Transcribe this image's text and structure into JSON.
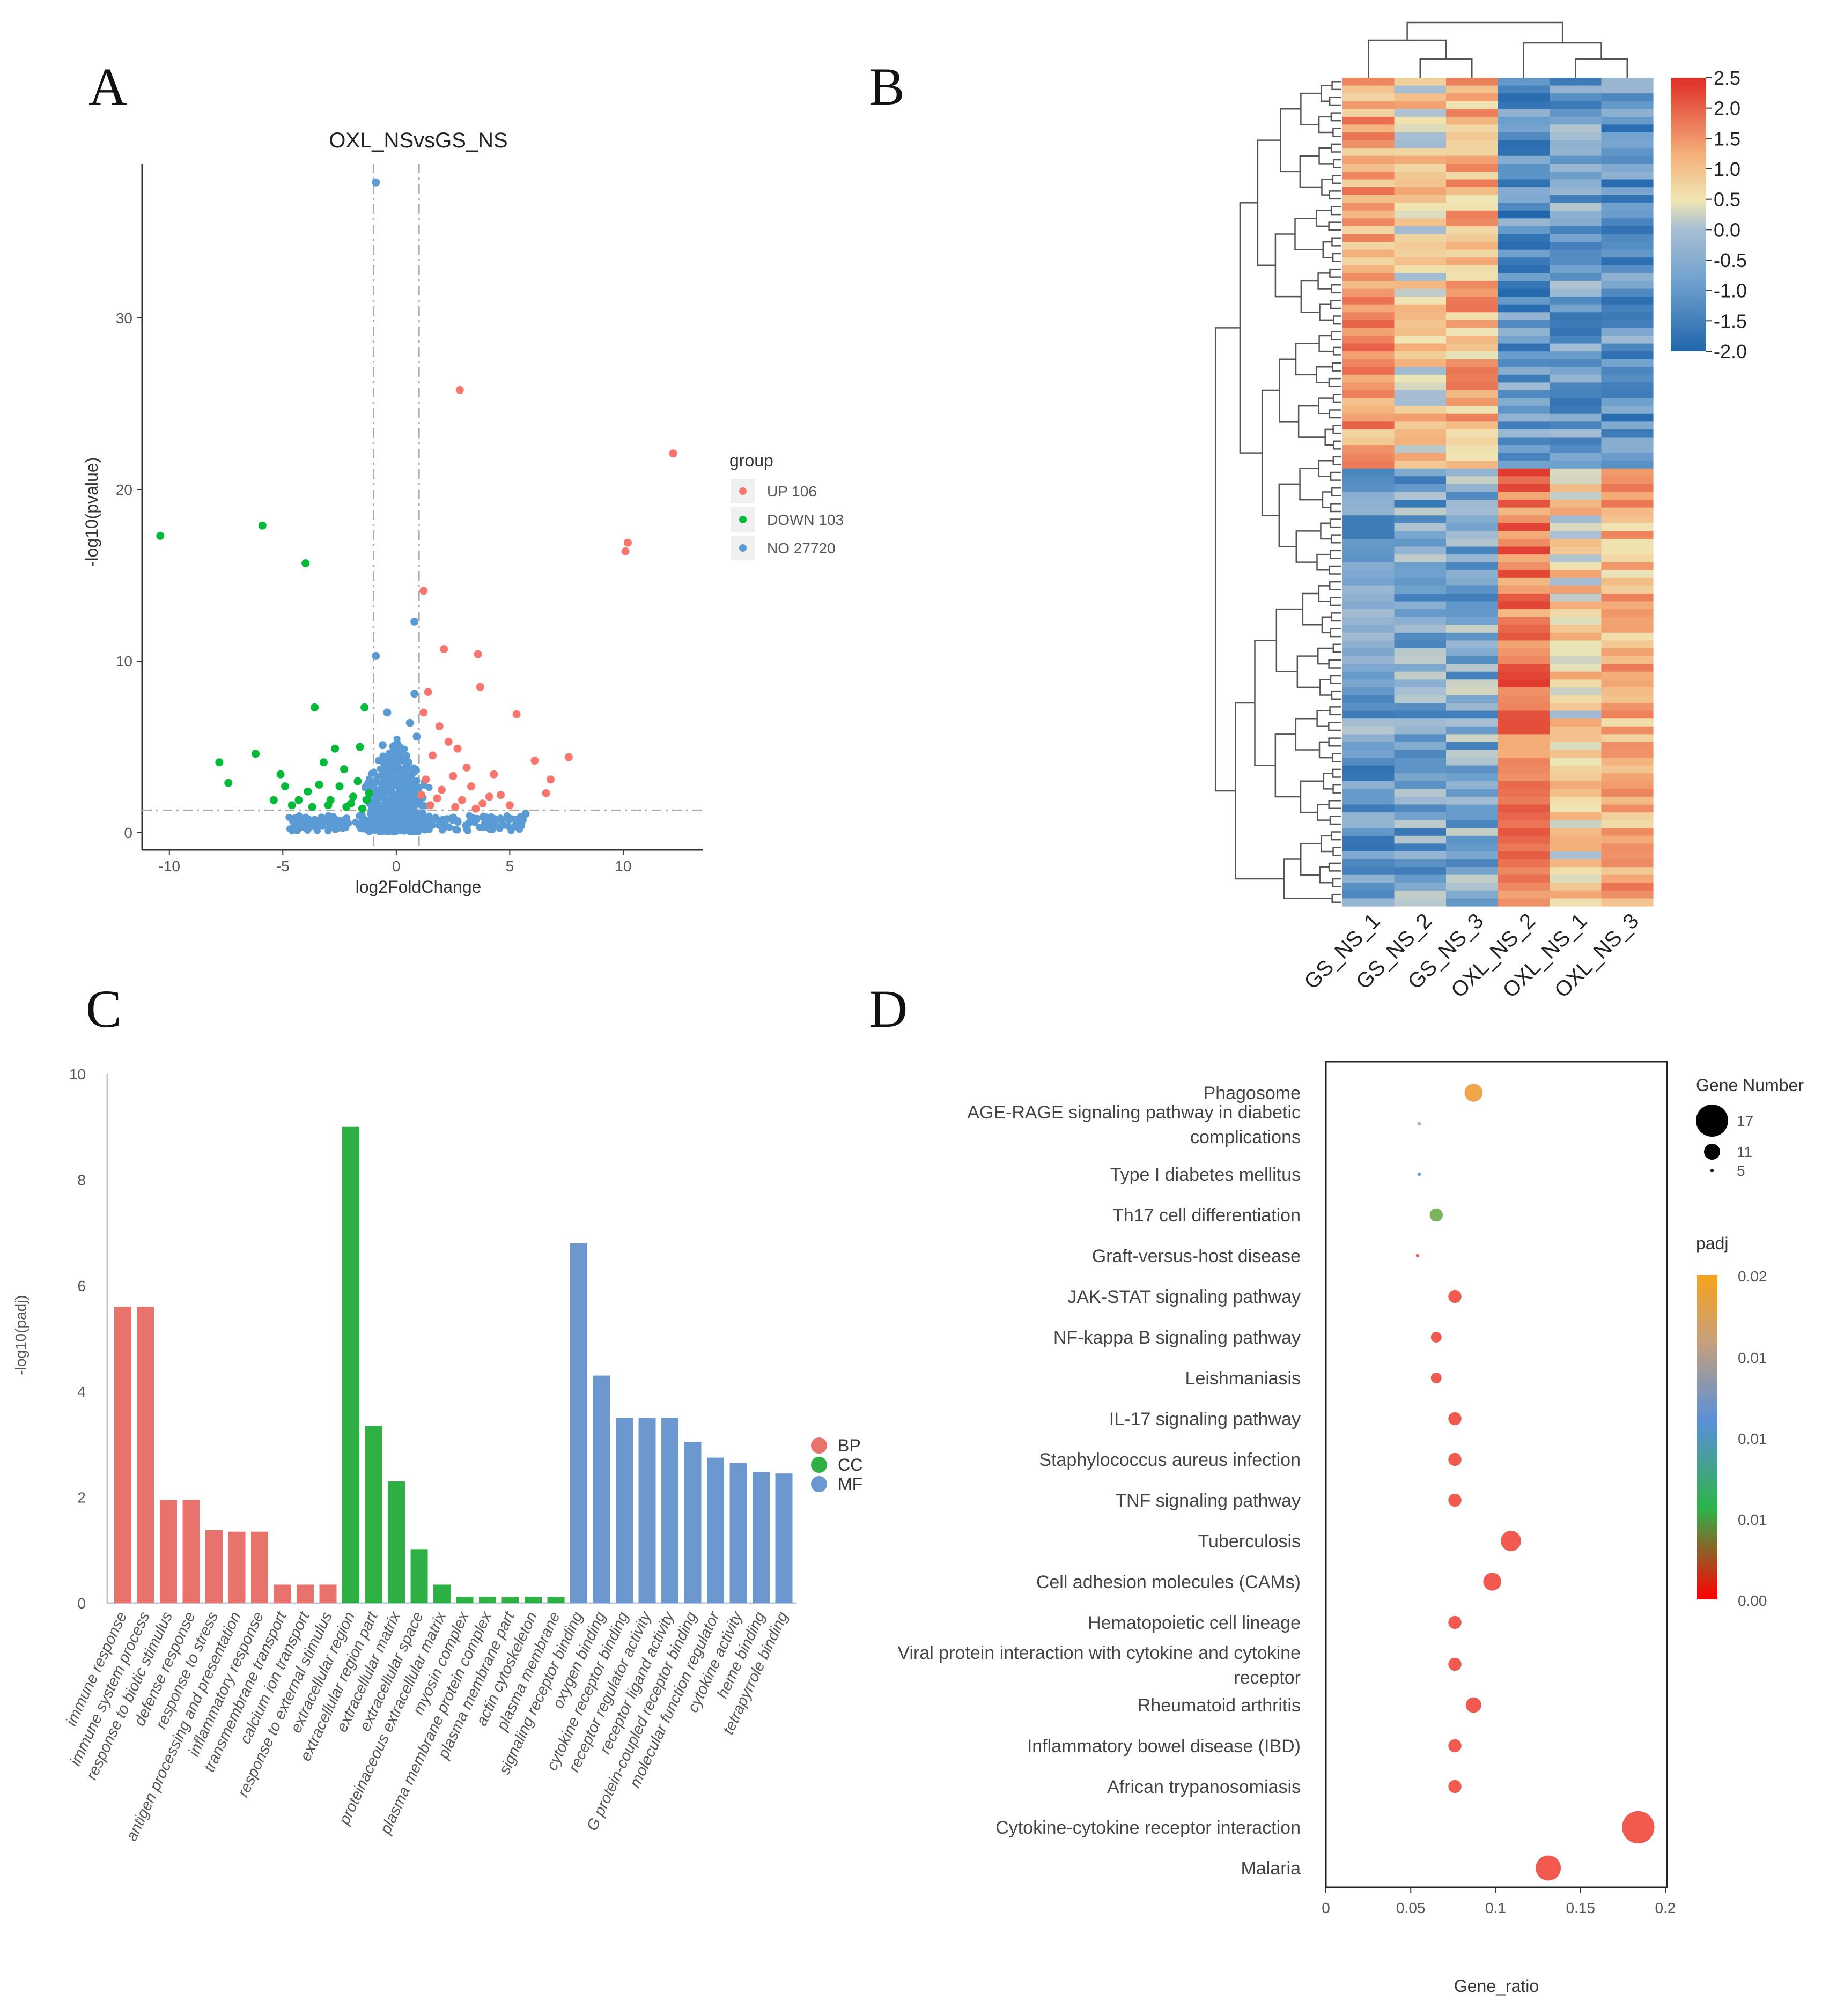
{
  "panels": {
    "A": "A",
    "B": "B",
    "C": "C",
    "D": "D"
  },
  "colors": {
    "up": "#f8766d",
    "down": "#00ba38",
    "no": "#5b9bd5",
    "bp": "#e8726c",
    "cc": "#2fb045",
    "mf": "#6d97cf"
  },
  "chart_data": [
    {
      "type": "scatter",
      "title": "OXL_NSvsGS_NS",
      "xlabel": "log2FoldChange",
      "ylabel": "-log10(pvalue)",
      "xlim": [
        -11.2,
        13.5
      ],
      "ylim": [
        -1,
        39
      ],
      "xticks": [
        -10,
        -5,
        0,
        5,
        10
      ],
      "yticks": [
        0,
        10,
        20,
        30
      ],
      "thresholds": {
        "x": [
          -1,
          1
        ],
        "y": 1.3
      },
      "legend": {
        "title": "group",
        "entries": [
          "UP 106",
          "DOWN 103",
          "NO 27720"
        ]
      },
      "series": [
        {
          "name": "UP",
          "points": [
            [
              2.8,
              25.8
            ],
            [
              12.2,
              22.1
            ],
            [
              10.1,
              16.4
            ],
            [
              10.2,
              16.9
            ],
            [
              1.2,
              14.1
            ],
            [
              2.1,
              10.7
            ],
            [
              3.6,
              10.4
            ],
            [
              3.7,
              8.5
            ],
            [
              1.4,
              8.2
            ],
            [
              5.3,
              6.9
            ],
            [
              1.2,
              7.0
            ],
            [
              6.1,
              4.2
            ],
            [
              7.6,
              4.4
            ],
            [
              6.8,
              3.1
            ],
            [
              6.6,
              2.3
            ],
            [
              1.6,
              4.5
            ],
            [
              2.5,
              3.3
            ],
            [
              3.3,
              2.7
            ],
            [
              4.1,
              2.1
            ],
            [
              2.0,
              2.5
            ],
            [
              1.3,
              3.1
            ],
            [
              1.8,
              2.0
            ],
            [
              2.9,
              1.9
            ],
            [
              3.8,
              1.7
            ],
            [
              4.6,
              2.2
            ],
            [
              1.1,
              2.2
            ],
            [
              2.3,
              5.3
            ],
            [
              3.1,
              3.8
            ],
            [
              4.3,
              3.4
            ],
            [
              1.5,
              1.6
            ],
            [
              2.6,
              1.5
            ],
            [
              3.5,
              1.4
            ],
            [
              5.0,
              1.6
            ],
            [
              1.9,
              6.2
            ],
            [
              2.7,
              4.9
            ]
          ]
        },
        {
          "name": "DOWN",
          "points": [
            [
              -10.4,
              17.3
            ],
            [
              -5.9,
              17.9
            ],
            [
              -4.0,
              15.7
            ],
            [
              -3.6,
              7.3
            ],
            [
              -7.8,
              4.1
            ],
            [
              -6.2,
              4.6
            ],
            [
              -7.4,
              2.9
            ],
            [
              -5.1,
              3.4
            ],
            [
              -4.9,
              2.7
            ],
            [
              -4.3,
              1.9
            ],
            [
              -3.9,
              2.4
            ],
            [
              -3.2,
              4.1
            ],
            [
              -2.7,
              4.9
            ],
            [
              -2.3,
              3.7
            ],
            [
              -1.7,
              3.0
            ],
            [
              -1.4,
              7.3
            ],
            [
              -1.2,
              2.3
            ],
            [
              -2.0,
              1.7
            ],
            [
              -3.0,
              1.6
            ],
            [
              -2.5,
              2.7
            ],
            [
              -1.6,
              5.0
            ],
            [
              -1.9,
              2.1
            ],
            [
              -3.4,
              2.8
            ],
            [
              -4.6,
              1.6
            ],
            [
              -2.2,
              1.5
            ],
            [
              -1.3,
              1.9
            ],
            [
              -2.9,
              1.9
            ],
            [
              -1.5,
              1.4
            ],
            [
              -3.7,
              1.5
            ],
            [
              -5.4,
              1.9
            ]
          ]
        },
        {
          "name": "NO",
          "points": [
            [
              -0.9,
              37.9
            ],
            [
              0.8,
              12.3
            ],
            [
              -0.9,
              10.3
            ],
            [
              0.8,
              8.1
            ],
            [
              -0.4,
              7.0
            ],
            [
              0.6,
              6.4
            ],
            [
              -0.6,
              5.1
            ],
            [
              0.3,
              4.4
            ],
            [
              0.5,
              3.5
            ],
            [
              -0.2,
              3.0
            ],
            [
              5.7,
              1.1
            ],
            [
              0.2,
              2.2
            ],
            [
              -0.7,
              2.5
            ],
            [
              -0.3,
              1.8
            ],
            [
              0.4,
              1.9
            ],
            [
              0.9,
              5.6
            ],
            [
              0.1,
              1.4
            ],
            [
              -0.5,
              1.6
            ],
            [
              0.7,
              3.0
            ]
          ]
        }
      ]
    },
    {
      "type": "heatmap",
      "columns": [
        "GS_NS_1",
        "GS_NS_2",
        "GS_NS_3",
        "OXL_NS_2",
        "OXL_NS_1",
        "OXL_NS_3"
      ],
      "row_count": 106,
      "colorbar": {
        "ticks": [
          "2.5",
          "2.0",
          "1.5",
          "1.0",
          "0.5",
          "0.0",
          "-0.5",
          "-1.0",
          "-1.5",
          "-2.0"
        ],
        "range": [
          -2.0,
          2.5
        ]
      },
      "row_blocks": [
        {
          "rows": 50,
          "means": [
            1.1,
            0.4,
            0.9,
            -1.2,
            -1.0,
            -1.1
          ]
        },
        {
          "rows": 56,
          "means": [
            -1.0,
            -0.9,
            -0.8,
            1.6,
            0.4,
            0.9
          ]
        }
      ]
    },
    {
      "type": "bar",
      "ylabel": "-log10(padj)",
      "ylim": [
        0,
        10
      ],
      "yticks": [
        0,
        2,
        4,
        6,
        8,
        10
      ],
      "legend": [
        "BP",
        "CC",
        "MF"
      ],
      "categories": [
        "immune response",
        "immune system process",
        "response to biotic stimulus",
        "defense response",
        "response to stress",
        "antigen processing and presentation",
        "inflammatory response",
        "transmembrane transport",
        "calcium ion transport",
        "response to external stimulus",
        "extracellular region",
        "extracellular region part",
        "extracellular matrix",
        "extracellular space",
        "proteinaceous extracellular matrix",
        "myosin complex",
        "plasma membrane protein complex",
        "plasma membrane part",
        "actin cytoskeleton",
        "plasma membrane",
        "signaling receptor binding",
        "oxygen binding",
        "cytokine receptor binding",
        "receptor regulator activity",
        "receptor ligand activity",
        "G protein-coupled receptor binding",
        "molecular function regulator",
        "cytokine activity",
        "heme binding",
        "tetrapyrrole binding"
      ],
      "values": [
        5.6,
        5.6,
        1.95,
        1.95,
        1.38,
        1.35,
        1.35,
        0.35,
        0.35,
        0.35,
        9.0,
        3.35,
        2.3,
        1.02,
        0.35,
        0.12,
        0.12,
        0.12,
        0.12,
        0.12,
        6.8,
        4.3,
        3.5,
        3.5,
        3.5,
        3.05,
        2.75,
        2.65,
        2.48,
        2.45
      ],
      "groups": [
        "BP",
        "BP",
        "BP",
        "BP",
        "BP",
        "BP",
        "BP",
        "BP",
        "BP",
        "BP",
        "CC",
        "CC",
        "CC",
        "CC",
        "CC",
        "CC",
        "CC",
        "CC",
        "CC",
        "CC",
        "MF",
        "MF",
        "MF",
        "MF",
        "MF",
        "MF",
        "MF",
        "MF",
        "MF",
        "MF"
      ]
    },
    {
      "type": "scatter",
      "subtype": "bubble",
      "xlabel": "Gene_ratio",
      "xlim": [
        0,
        0.2
      ],
      "xticks": [
        "0",
        "0.05",
        "0.1",
        "0.15",
        "0.2"
      ],
      "size_legend": {
        "title": "Gene Number",
        "values": [
          17,
          11,
          5
        ]
      },
      "color_legend": {
        "title": "padj",
        "ticks": [
          "0.02",
          "0.01",
          "0.01",
          "0.01",
          "0.00"
        ]
      },
      "terms": [
        {
          "label": [
            "Phagosome"
          ],
          "ratio": 0.087,
          "genes": 11,
          "padj": 0.019
        },
        {
          "label": [
            "AGE-RAGE signaling pathway in diabetic",
            "complications"
          ],
          "ratio": 0.055,
          "genes": 5,
          "padj": 0.012
        },
        {
          "label": [
            "Type I diabetes mellitus"
          ],
          "ratio": 0.055,
          "genes": 5,
          "padj": 0.009
        },
        {
          "label": [
            "Th17 cell differentiation"
          ],
          "ratio": 0.065,
          "genes": 9,
          "padj": 0.006
        },
        {
          "label": [
            "Graft-versus-host disease"
          ],
          "ratio": 0.054,
          "genes": 5,
          "padj": 0.002
        },
        {
          "label": [
            "JAK-STAT signaling pathway"
          ],
          "ratio": 0.076,
          "genes": 9,
          "padj": 0.003
        },
        {
          "label": [
            "NF-kappa B signaling pathway"
          ],
          "ratio": 0.065,
          "genes": 8,
          "padj": 0.003
        },
        {
          "label": [
            "Leishmaniasis"
          ],
          "ratio": 0.065,
          "genes": 8,
          "padj": 0.001
        },
        {
          "label": [
            "IL-17 signaling pathway"
          ],
          "ratio": 0.076,
          "genes": 9,
          "padj": 0.0005
        },
        {
          "label": [
            "Staphylococcus aureus infection"
          ],
          "ratio": 0.076,
          "genes": 9,
          "padj": 0.0004
        },
        {
          "label": [
            "TNF signaling pathway"
          ],
          "ratio": 0.076,
          "genes": 9,
          "padj": 0.0004
        },
        {
          "label": [
            "Tuberculosis"
          ],
          "ratio": 0.109,
          "genes": 12,
          "padj": 0.0003
        },
        {
          "label": [
            "Cell adhesion molecules (CAMs)"
          ],
          "ratio": 0.098,
          "genes": 11,
          "padj": 0.0002
        },
        {
          "label": [
            "Hematopoietic cell lineage"
          ],
          "ratio": 0.076,
          "genes": 9,
          "padj": 0.0002
        },
        {
          "label": [
            "Viral protein interaction with cytokine and cytokine",
            "receptor"
          ],
          "ratio": 0.076,
          "genes": 9,
          "padj": 0.0002
        },
        {
          "label": [
            "Rheumatoid arthritis"
          ],
          "ratio": 0.087,
          "genes": 10,
          "padj": 0.0001
        },
        {
          "label": [
            "Inflammatory bowel disease (IBD)"
          ],
          "ratio": 0.076,
          "genes": 9,
          "padj": 0.0001
        },
        {
          "label": [
            "African trypanosomiasis"
          ],
          "ratio": 0.076,
          "genes": 9,
          "padj": 0.0001
        },
        {
          "label": [
            "Cytokine-cytokine receptor interaction"
          ],
          "ratio": 0.184,
          "genes": 17,
          "padj": 1e-05
        },
        {
          "label": [
            "Malaria"
          ],
          "ratio": 0.131,
          "genes": 14,
          "padj": 1e-05
        }
      ]
    }
  ]
}
